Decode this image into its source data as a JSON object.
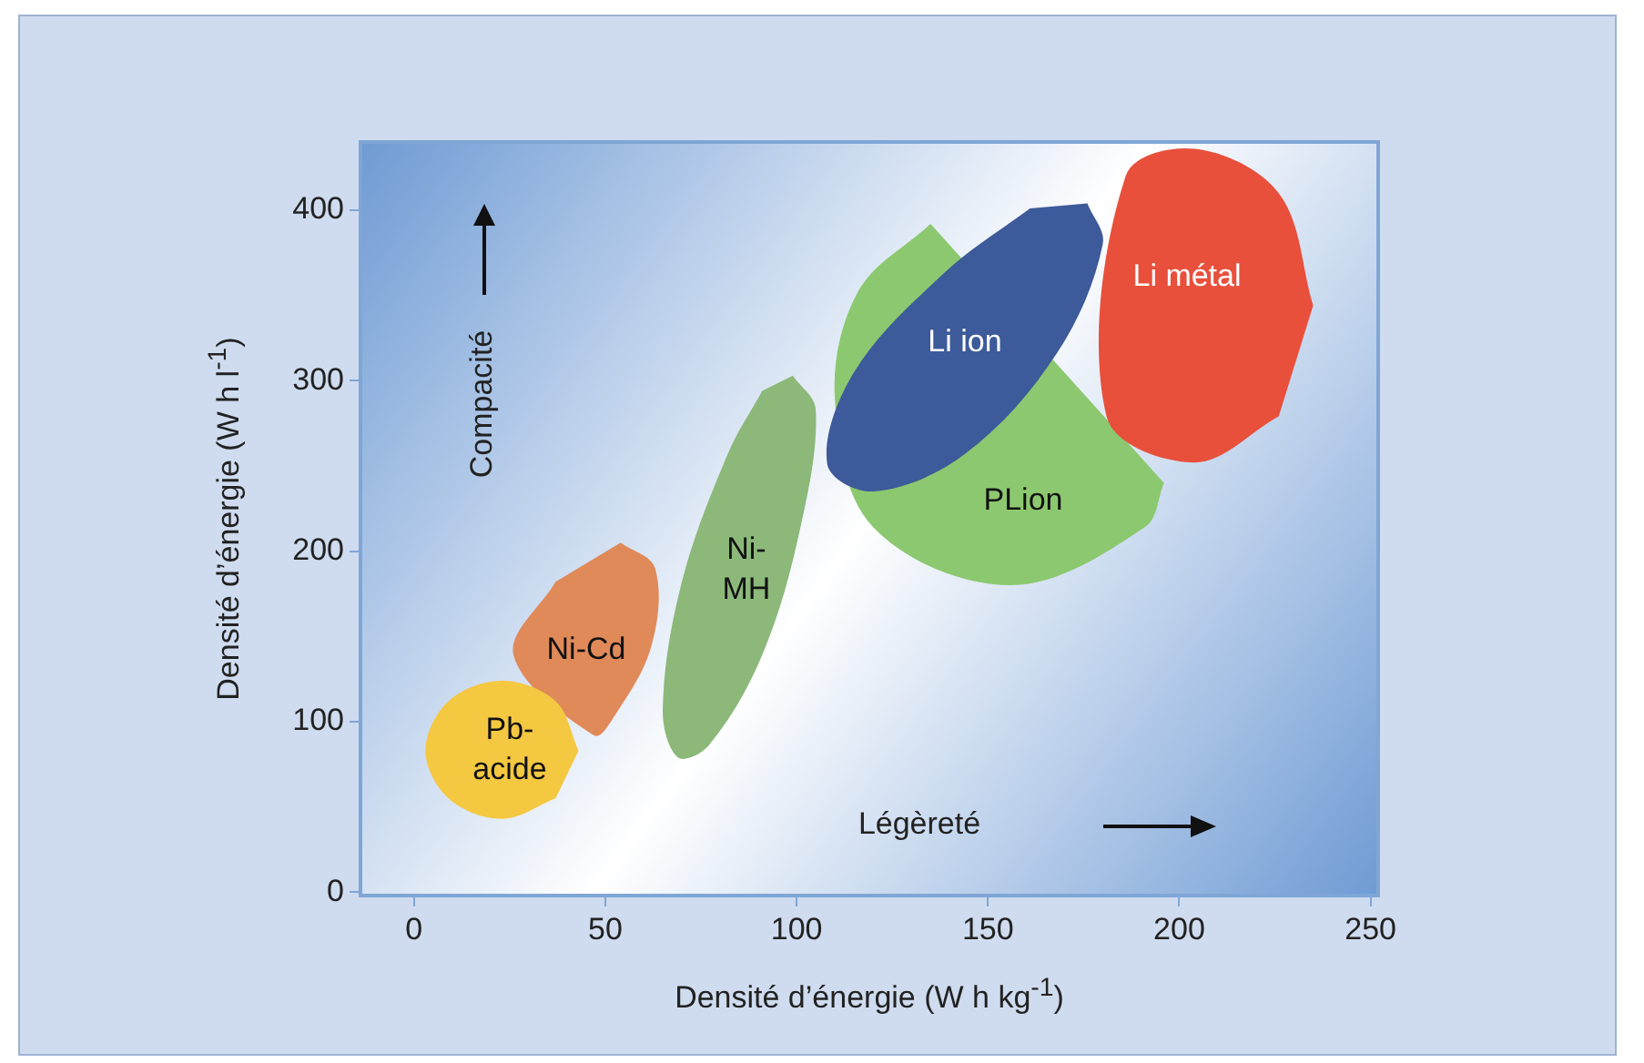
{
  "chart_data": {
    "type": "area",
    "xlabel": "Densité d’énergie (W h kg$^{-1}$)",
    "ylabel": "Densité d’énergie (W h l$^{-1}$)",
    "xlim": [
      -14,
      252
    ],
    "xticks": [
      0,
      50,
      100,
      150,
      200,
      250
    ],
    "ylim": [
      -2,
      440
    ],
    "yticks": [
      0,
      100,
      200,
      300,
      400
    ],
    "legend": false,
    "marker": "none",
    "series": [
      {
        "color": "#e08a5a",
        "x": [
          54,
          63,
          62,
          52,
          47,
          26,
          37
        ],
        "values": [
          205,
          190,
          144,
          102,
          92,
          139,
          182
        ]
      },
      {
        "color": "#f5c842",
        "x": [
          43,
          37,
          23,
          9,
          3,
          9,
          23,
          37
        ],
        "values": [
          83,
          112,
          124,
          112,
          83,
          55,
          43,
          55
        ]
      },
      {
        "color": "#8cb87a",
        "x": [
          99,
          105,
          101,
          91,
          77,
          69,
          65,
          70,
          82,
          91
        ],
        "values": [
          303,
          283,
          214,
          139,
          86,
          79,
          107,
          182,
          257,
          294
        ]
      },
      {
        "color": "#8cc870",
        "x": [
          135,
          116,
          110,
          120,
          156,
          191,
          196
        ],
        "values": [
          392,
          352,
          289,
          214,
          180,
          214,
          240
        ]
      },
      {
        "color": "#e8503c",
        "x": [
          235,
          226,
          204,
          186,
          181,
          204,
          226
        ],
        "values": [
          344,
          410,
          436,
          420,
          279,
          252,
          279
        ]
      },
      {
        "color": "#3d5a9a",
        "x": [
          176,
          180,
          168,
          144,
          120,
          108,
          115,
          139,
          161
        ],
        "values": [
          404,
          380,
          316,
          257,
          235,
          251,
          305,
          364,
          401
        ]
      }
    ],
    "annotations": [
      "Ni-Cd",
      "Pb-\nacide",
      "Ni-\nMH",
      "PLion",
      "Li métal",
      "Li ion",
      "Compacité",
      "Légèreté"
    ]
  }
}
